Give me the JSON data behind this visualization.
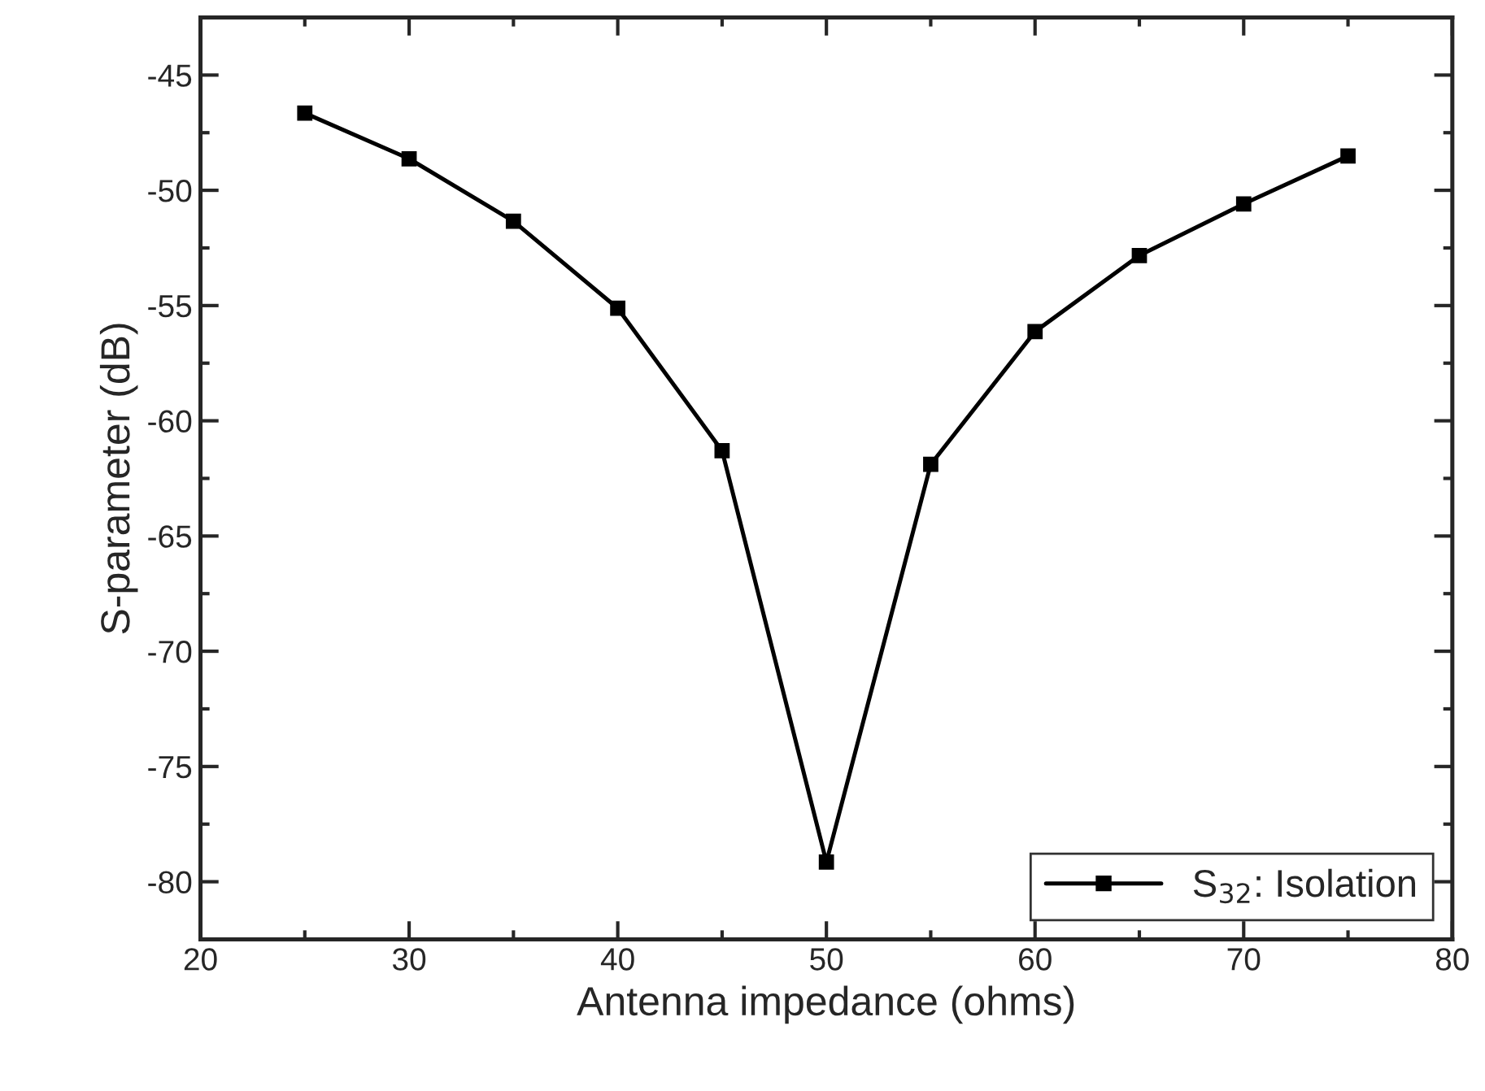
{
  "chart_data": {
    "type": "line",
    "xlabel": "Antenna impedance (ohms)",
    "ylabel": "S-parameter (dB)",
    "x": [
      25,
      30,
      35,
      40,
      45,
      50,
      55,
      60,
      65,
      70,
      75
    ],
    "series": [
      {
        "name": "S$_{32}$: Isolation",
        "color": "#000000",
        "values": [
          -46.65,
          -48.63,
          -51.34,
          -55.12,
          -61.3,
          -79.15,
          -61.89,
          -56.13,
          -52.83,
          -50.59,
          -48.51
        ]
      }
    ],
    "xlim": [
      20,
      80
    ],
    "xticks": [
      20,
      30,
      40,
      50,
      60,
      70,
      80
    ],
    "ylim": [
      -82.5,
      -42.5
    ],
    "yticks": [
      -80,
      -75,
      -70,
      -65,
      -60,
      -55,
      -50,
      -45
    ],
    "marker": "square",
    "line_style": "solid",
    "grid": false,
    "legend": "bottom right"
  }
}
